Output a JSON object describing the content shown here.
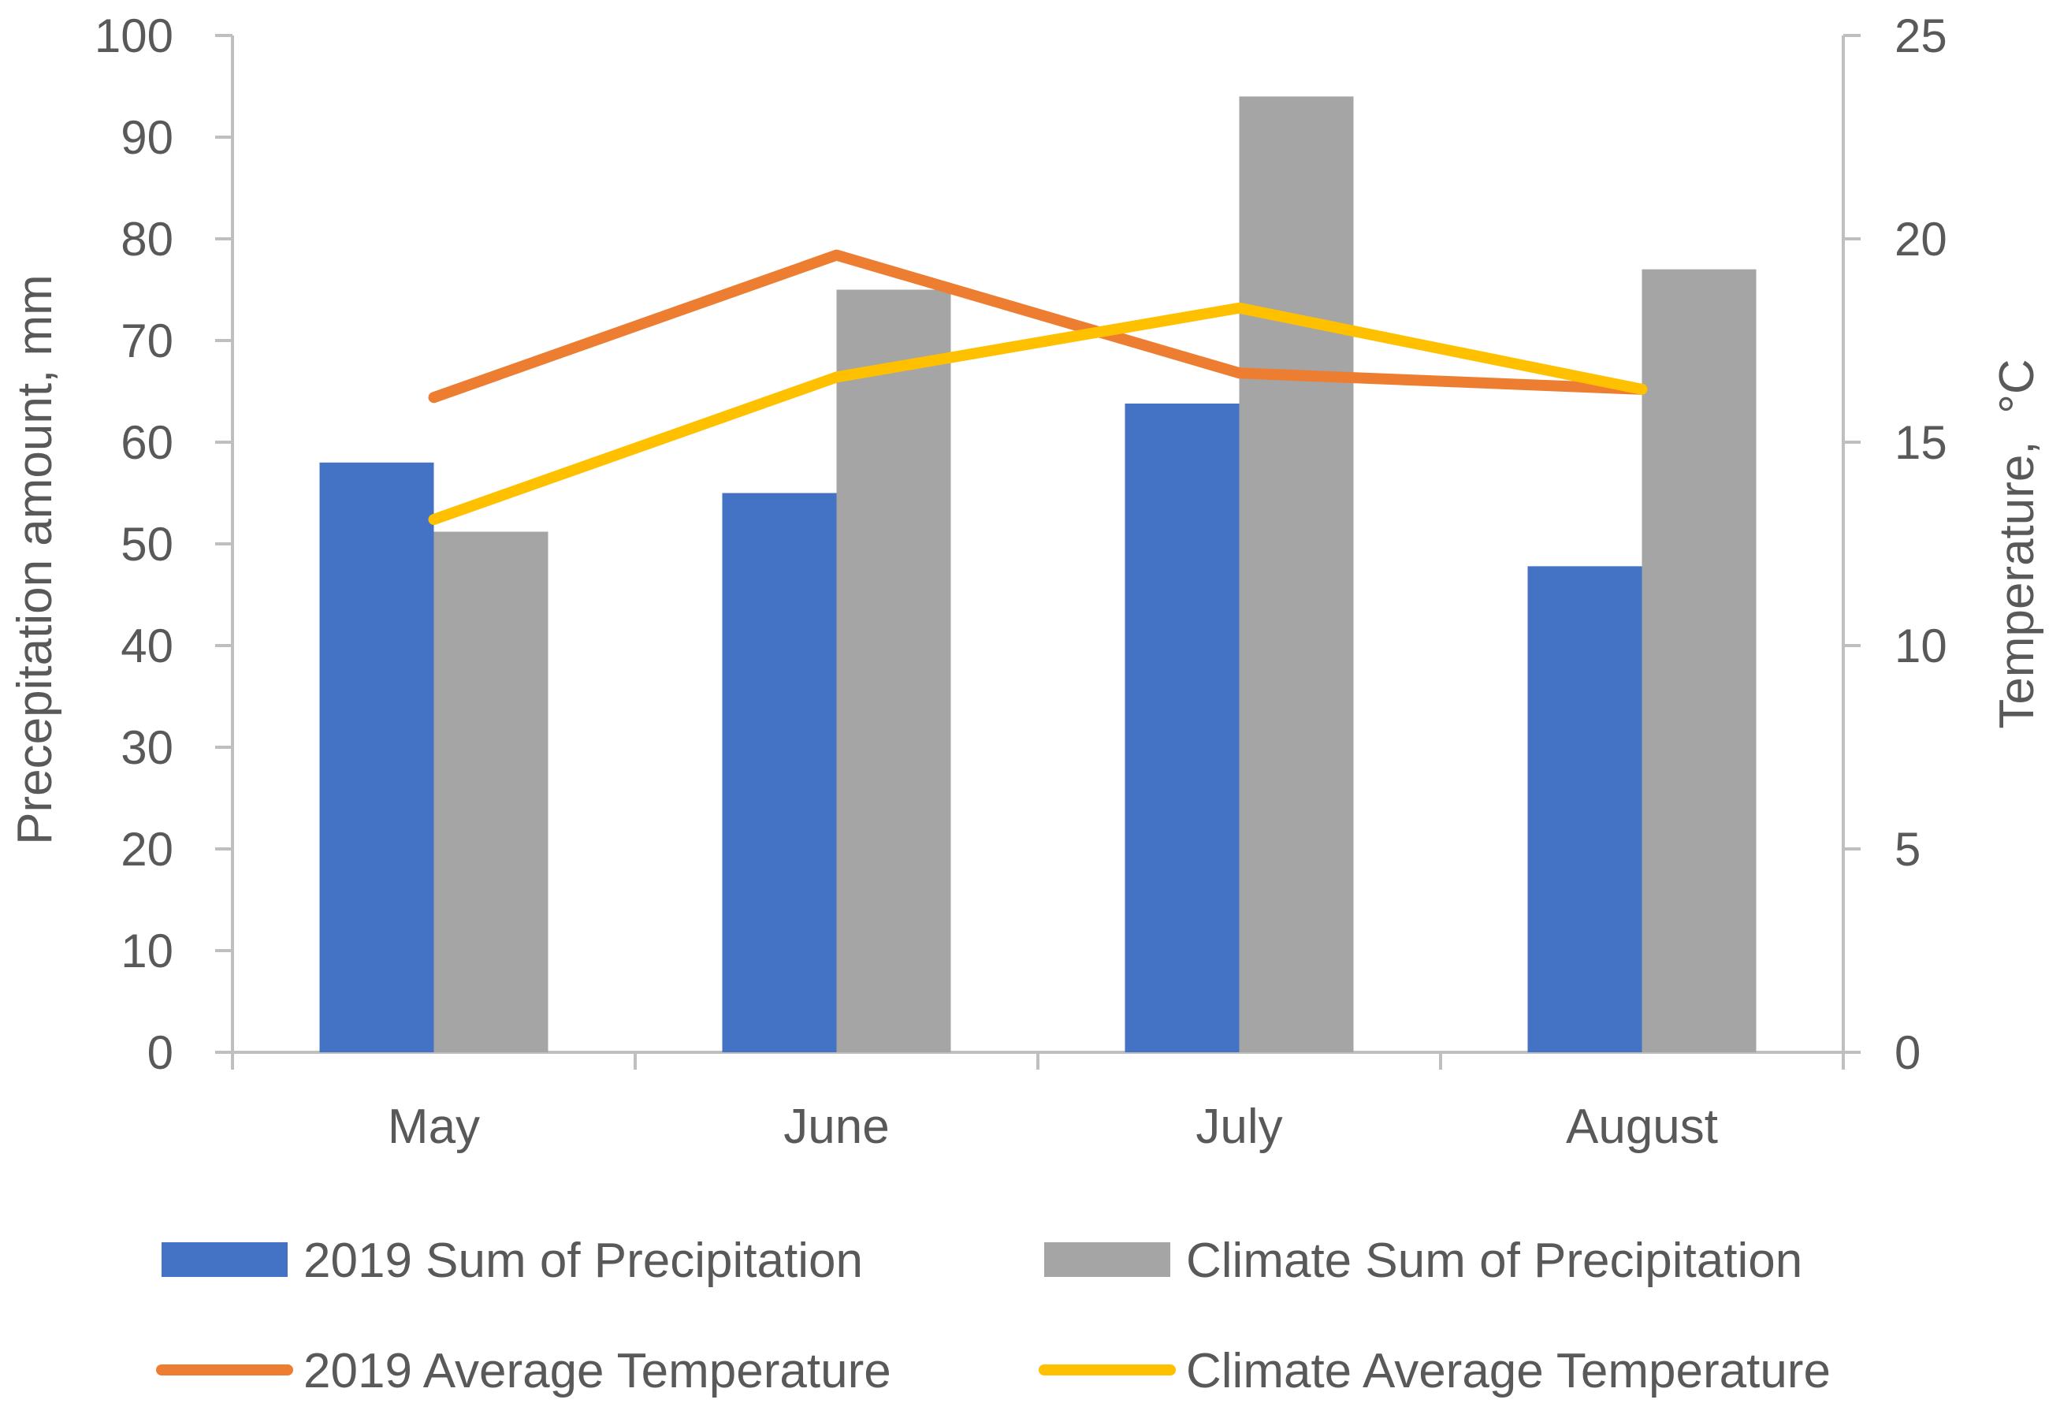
{
  "chart_data": {
    "type": "bar",
    "categories": [
      "May",
      "June",
      "July",
      "August"
    ],
    "series": [
      {
        "name": "2019 Sum of Precipitation",
        "kind": "bar",
        "axis": "left",
        "color": "#4472C4",
        "values": [
          58,
          55,
          63.8,
          47.8
        ]
      },
      {
        "name": "Climate Sum of Precipitation",
        "kind": "bar",
        "axis": "left",
        "color": "#A5A5A5",
        "values": [
          51.2,
          75,
          94,
          77
        ]
      },
      {
        "name": "2019 Average Temperature",
        "kind": "line",
        "axis": "right",
        "color": "#ED7D31",
        "values": [
          16.1,
          19.6,
          16.7,
          16.3
        ]
      },
      {
        "name": "Climate Average Temperature",
        "kind": "line",
        "axis": "right",
        "color": "#FFC000",
        "values": [
          13.1,
          16.6,
          18.3,
          16.3
        ]
      }
    ],
    "ylabel": "Precepitation amount, mm",
    "y2label": "Temperature,  °C",
    "ylim": [
      0,
      100
    ],
    "y2lim": [
      0,
      25
    ],
    "yticks": [
      "0",
      "10",
      "20",
      "30",
      "40",
      "50",
      "60",
      "70",
      "80",
      "90",
      "100"
    ],
    "y2ticks": [
      "0",
      "5",
      "10",
      "15",
      "20",
      "25"
    ],
    "grid": false,
    "legend_position": "bottom",
    "colors": {
      "text": "#595959",
      "axis": "#BFBFBF",
      "background": "#FFFFFF"
    }
  }
}
